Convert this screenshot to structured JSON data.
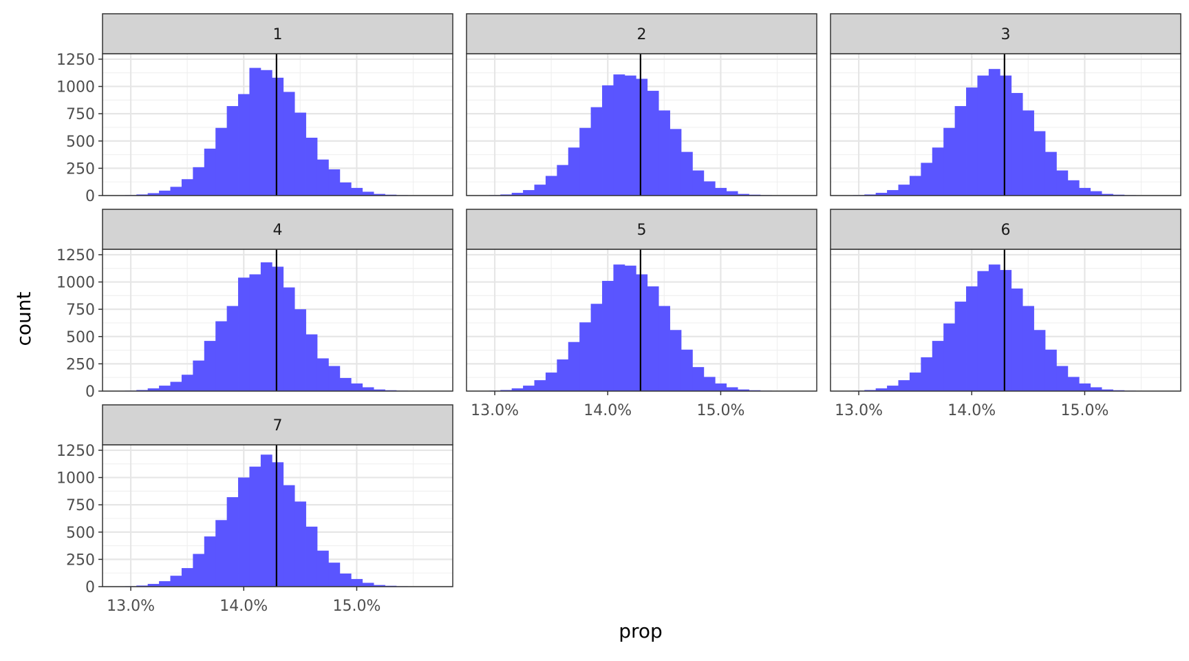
{
  "chart_data": {
    "type": "bar",
    "subtype": "faceted-histogram",
    "xlabel": "prop",
    "ylabel": "count",
    "xlim": [
      12.75,
      15.85
    ],
    "ylim": [
      0,
      1300
    ],
    "x_ticks": [
      13.0,
      14.0,
      15.0
    ],
    "x_tick_labels": [
      "13.0%",
      "14.0%",
      "15.0%"
    ],
    "y_ticks": [
      0,
      250,
      500,
      750,
      1000,
      1250
    ],
    "y_tick_labels": [
      "0",
      "250",
      "500",
      "750",
      "1000",
      "1250"
    ],
    "vline": 14.29,
    "grid": true,
    "bar_color": "#5a55ff",
    "strip_fill": "#d3d3d3",
    "bin_width": 0.1,
    "bin_centers": [
      12.9,
      13.0,
      13.1,
      13.2,
      13.3,
      13.4,
      13.5,
      13.6,
      13.7,
      13.8,
      13.9,
      14.0,
      14.1,
      14.2,
      14.3,
      14.4,
      14.5,
      14.6,
      14.7,
      14.8,
      14.9,
      15.0,
      15.1,
      15.2,
      15.3,
      15.4,
      15.5,
      15.6
    ],
    "panels": [
      {
        "label": "1",
        "values": [
          2,
          4,
          10,
          22,
          45,
          80,
          150,
          260,
          430,
          620,
          820,
          930,
          1170,
          1150,
          1080,
          950,
          760,
          530,
          330,
          240,
          120,
          70,
          35,
          15,
          8,
          4,
          2,
          1
        ]
      },
      {
        "label": "2",
        "values": [
          2,
          4,
          10,
          25,
          50,
          100,
          180,
          280,
          440,
          620,
          810,
          1010,
          1110,
          1100,
          1070,
          960,
          780,
          610,
          400,
          230,
          130,
          70,
          40,
          15,
          8,
          4,
          2,
          1
        ]
      },
      {
        "label": "3",
        "values": [
          2,
          4,
          10,
          25,
          50,
          100,
          180,
          300,
          440,
          620,
          820,
          990,
          1100,
          1160,
          1100,
          940,
          780,
          590,
          400,
          230,
          140,
          70,
          40,
          15,
          8,
          4,
          2,
          1
        ]
      },
      {
        "label": "4",
        "values": [
          2,
          4,
          10,
          25,
          50,
          85,
          150,
          280,
          460,
          640,
          780,
          1040,
          1070,
          1180,
          1140,
          950,
          750,
          520,
          300,
          230,
          120,
          70,
          35,
          15,
          8,
          4,
          2,
          1
        ]
      },
      {
        "label": "5",
        "values": [
          2,
          4,
          10,
          25,
          50,
          100,
          170,
          290,
          450,
          630,
          800,
          1010,
          1160,
          1150,
          1070,
          960,
          780,
          560,
          380,
          220,
          130,
          70,
          35,
          15,
          8,
          4,
          2,
          1
        ]
      },
      {
        "label": "6",
        "values": [
          2,
          4,
          10,
          25,
          50,
          100,
          170,
          310,
          460,
          620,
          820,
          960,
          1100,
          1160,
          1110,
          940,
          780,
          560,
          380,
          230,
          130,
          70,
          35,
          15,
          8,
          4,
          2,
          1
        ]
      },
      {
        "label": "7",
        "values": [
          2,
          4,
          10,
          25,
          50,
          100,
          170,
          300,
          460,
          610,
          820,
          1000,
          1100,
          1210,
          1140,
          930,
          780,
          550,
          330,
          220,
          120,
          70,
          35,
          15,
          8,
          4,
          2,
          1
        ]
      }
    ]
  }
}
